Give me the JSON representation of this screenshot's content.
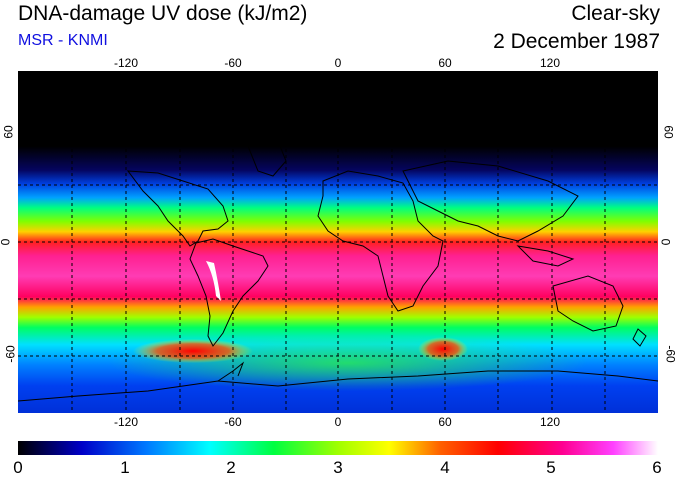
{
  "header": {
    "title": "DNA-damage UV dose (kJ/m2)",
    "source": "MSR - KNMI",
    "condition": "Clear-sky",
    "date": "2 December 1987"
  },
  "map": {
    "longitude_ticks": [
      "-120",
      "-60",
      "0",
      "60",
      "120"
    ],
    "latitude_ticks": [
      "60",
      "0",
      "-60"
    ],
    "lon_range": [
      -180,
      180
    ],
    "lat_range": [
      -90,
      90
    ],
    "grid": "dashed 30-degree graticule"
  },
  "colorbar": {
    "ticks": [
      "0",
      "1",
      "2",
      "3",
      "4",
      "5",
      "6"
    ],
    "range": [
      0,
      6
    ],
    "colors": [
      "#000000",
      "#0000c8",
      "#0078ff",
      "#00ffff",
      "#00ff00",
      "#ffff00",
      "#ff6000",
      "#ff0000",
      "#ff0090",
      "#ff40ff",
      "#ffffff"
    ]
  }
}
